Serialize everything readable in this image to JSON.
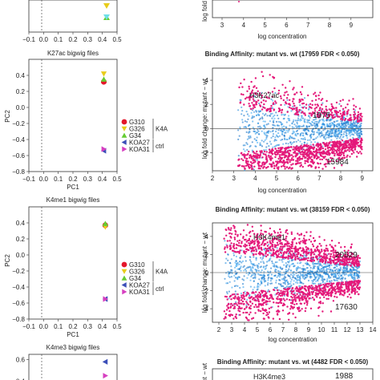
{
  "figure_top": {
    "pca": {
      "x_ticks": [
        "−0.1",
        "0.0",
        "0.1",
        "0.2",
        "0.3",
        "0.4",
        "0.5"
      ],
      "xlabel": ""
    },
    "ma": {
      "x_ticks": [
        "3",
        "4",
        "5",
        "6",
        "7",
        "8",
        "9"
      ],
      "xlabel": "log concentration",
      "ylabel": "log fold"
    }
  },
  "chart_data": [
    {
      "type": "scatter",
      "panel": "pca-k27ac",
      "title": "K27ac bigwig files",
      "xlabel": "PC1",
      "ylabel": "PC2",
      "xlim": [
        -0.1,
        0.5
      ],
      "ylim": [
        -0.8,
        0.6
      ],
      "x_ticks": [
        "−0.1",
        "0.0",
        "0.1",
        "0.2",
        "0.3",
        "0.4",
        "0.5"
      ],
      "y_ticks": [
        "−0.8",
        "−0.6",
        "−0.4",
        "−0.2",
        "0.0",
        "0.2",
        "0.4"
      ],
      "points": [
        {
          "name": "G310",
          "x": 0.41,
          "y": 0.32,
          "color": "#e4172b",
          "shape": "circle"
        },
        {
          "name": "G326",
          "x": 0.41,
          "y": 0.42,
          "color": "#e8cc1a",
          "shape": "tri-down"
        },
        {
          "name": "G34",
          "x": 0.41,
          "y": 0.35,
          "color": "#66cc33",
          "shape": "tri-up"
        },
        {
          "name": "KOA27",
          "x": 0.41,
          "y": -0.54,
          "color": "#3b4fb8",
          "shape": "tri-left"
        },
        {
          "name": "KOA31",
          "x": 0.41,
          "y": -0.52,
          "color": "#d63fc0",
          "shape": "tri-right"
        }
      ],
      "legend": {
        "position": "center",
        "entries": [
          "G310",
          "G326",
          "G34",
          "KOA27",
          "KOA31"
        ],
        "groups": [
          {
            "label": "K4A",
            "members": 3
          },
          {
            "label": "ctrl",
            "members": 2
          }
        ]
      }
    },
    {
      "type": "scatter",
      "panel": "ma-k27ac",
      "title": "Binding Affinity: mutant vs. wt (17959 FDR < 0.050)",
      "xlabel": "log concentration",
      "ylabel": "log fold change: mutant − wt",
      "xlim": [
        2,
        9.5
      ],
      "x_ticks": [
        "2",
        "3",
        "4",
        "5",
        "6",
        "7",
        "8",
        "9"
      ],
      "y_ticks": [
        "−2",
        "0",
        "2",
        "4"
      ],
      "ylim": [
        -3.5,
        5
      ],
      "annotation": "H3K27ac",
      "up_count": "1975",
      "down_count": "15984"
    },
    {
      "type": "scatter",
      "panel": "pca-k4me1",
      "title": "K4me1 bigwig files",
      "xlabel": "PC1",
      "ylabel": "PC2",
      "xlim": [
        -0.1,
        0.5
      ],
      "ylim": [
        -0.8,
        0.6
      ],
      "x_ticks": [
        "−0.1",
        "0.0",
        "0.1",
        "0.2",
        "0.3",
        "0.4",
        "0.5"
      ],
      "y_ticks": [
        "−0.8",
        "−0.6",
        "−0.4",
        "−0.2",
        "0.0",
        "0.2",
        "0.4"
      ],
      "points": [
        {
          "name": "G310",
          "x": 0.42,
          "y": 0.37,
          "color": "#e4172b",
          "shape": "circle"
        },
        {
          "name": "G326",
          "x": 0.42,
          "y": 0.35,
          "color": "#e8cc1a",
          "shape": "tri-down"
        },
        {
          "name": "G34",
          "x": 0.42,
          "y": 0.39,
          "color": "#66cc33",
          "shape": "tri-up"
        },
        {
          "name": "KOA27",
          "x": 0.42,
          "y": -0.55,
          "color": "#3b4fb8",
          "shape": "tri-left"
        },
        {
          "name": "KOA31",
          "x": 0.42,
          "y": -0.55,
          "color": "#d63fc0",
          "shape": "tri-right"
        }
      ],
      "legend": {
        "position": "center",
        "entries": [
          "G310",
          "G326",
          "G34",
          "KOA27",
          "KOA31"
        ],
        "groups": [
          {
            "label": "K4A",
            "members": 3
          },
          {
            "label": "ctrl",
            "members": 2
          }
        ]
      }
    },
    {
      "type": "scatter",
      "panel": "ma-k4me1",
      "title": "Binding Affinity: mutant vs. wt (38159 FDR < 0.050)",
      "xlabel": "log concentration",
      "ylabel": "log fold change: mutant − wt",
      "xlim": [
        1.5,
        14
      ],
      "x_ticks": [
        "2",
        "3",
        "4",
        "5",
        "6",
        "7",
        "8",
        "9",
        "10",
        "11",
        "12",
        "13",
        "14"
      ],
      "y_ticks": [
        "−4",
        "−2",
        "0",
        "2",
        "4"
      ],
      "ylim": [
        -5.5,
        5.5
      ],
      "annotation": "H3K4me1",
      "up_count": "20529",
      "down_count": "17630"
    },
    {
      "type": "scatter",
      "panel": "pca-k4me3",
      "title": "K4me3 bigwig files",
      "xlim": [
        -0.1,
        0.5
      ],
      "ylim": [
        0.35,
        0.65
      ],
      "y_ticks": [
        "0.4",
        "0.6"
      ],
      "points": [
        {
          "name": "KOA27",
          "x": 0.42,
          "y": 0.58,
          "color": "#3b4fb8",
          "shape": "tri-left"
        },
        {
          "name": "KOA31",
          "x": 0.42,
          "y": 0.45,
          "color": "#d63fc0",
          "shape": "tri-right"
        }
      ]
    },
    {
      "type": "scatter",
      "panel": "ma-k4me3",
      "title": "Binding Affinity: mutant vs. wt (4482 FDR < 0.050)",
      "ylabel": "ant − wt",
      "annotation": "H3K4me3",
      "up_count": "1988"
    }
  ]
}
